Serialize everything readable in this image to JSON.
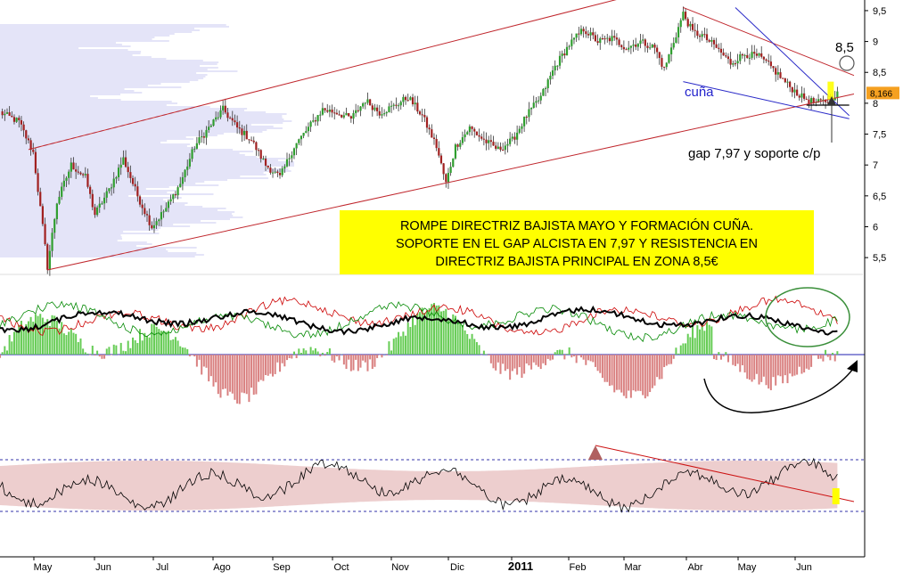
{
  "chart_data": [
    {
      "type": "candlestick",
      "title": "",
      "ylim": [
        5.3,
        9.6
      ],
      "y_ticks": [
        "9,5",
        "9",
        "8,5",
        "8",
        "7,5",
        "7",
        "6,5",
        "6",
        "5,5"
      ],
      "x_ticks": [
        "May",
        "Jun",
        "Jul",
        "Ago",
        "Sep",
        "Oct",
        "Nov",
        "Dic",
        "2011",
        "Feb",
        "Mar",
        "Abr",
        "May",
        "Jun"
      ],
      "price_path": [
        [
          0,
          7.85
        ],
        [
          8,
          7.7
        ],
        [
          14,
          7.2
        ],
        [
          18,
          6.0
        ],
        [
          20,
          5.35
        ],
        [
          24,
          6.4
        ],
        [
          30,
          7.0
        ],
        [
          36,
          6.8
        ],
        [
          40,
          6.2
        ],
        [
          46,
          6.6
        ],
        [
          52,
          7.1
        ],
        [
          58,
          6.5
        ],
        [
          64,
          6.0
        ],
        [
          70,
          6.3
        ],
        [
          76,
          6.7
        ],
        [
          82,
          7.3
        ],
        [
          88,
          7.6
        ],
        [
          94,
          7.9
        ],
        [
          100,
          7.6
        ],
        [
          106,
          7.4
        ],
        [
          112,
          7.0
        ],
        [
          118,
          6.8
        ],
        [
          124,
          7.3
        ],
        [
          130,
          7.6
        ],
        [
          136,
          7.9
        ],
        [
          142,
          7.85
        ],
        [
          148,
          7.75
        ],
        [
          154,
          8.05
        ],
        [
          160,
          7.85
        ],
        [
          166,
          7.95
        ],
        [
          172,
          8.1
        ],
        [
          178,
          7.8
        ],
        [
          184,
          7.3
        ],
        [
          188,
          6.7
        ],
        [
          192,
          7.3
        ],
        [
          198,
          7.6
        ],
        [
          204,
          7.4
        ],
        [
          210,
          7.25
        ],
        [
          216,
          7.4
        ],
        [
          222,
          7.8
        ],
        [
          228,
          8.1
        ],
        [
          234,
          8.6
        ],
        [
          240,
          8.95
        ],
        [
          246,
          9.2
        ],
        [
          252,
          9.0
        ],
        [
          258,
          9.05
        ],
        [
          264,
          8.9
        ],
        [
          270,
          9.0
        ],
        [
          276,
          8.9
        ],
        [
          280,
          8.55
        ],
        [
          284,
          9.0
        ],
        [
          288,
          9.45
        ],
        [
          292,
          9.15
        ],
        [
          296,
          9.1
        ],
        [
          302,
          8.9
        ],
        [
          308,
          8.65
        ],
        [
          314,
          8.8
        ],
        [
          320,
          8.75
        ],
        [
          326,
          8.55
        ],
        [
          332,
          8.3
        ],
        [
          338,
          8.1
        ],
        [
          344,
          8.0
        ],
        [
          350,
          8.05
        ],
        [
          352,
          8.15
        ]
      ],
      "trendlines": [
        {
          "name": "channel-top",
          "from": [
            12,
            7.25
          ],
          "to": [
            262,
            9.7
          ]
        },
        {
          "name": "channel-bottom",
          "from": [
            20,
            5.3
          ],
          "to": [
            360,
            8.15
          ]
        },
        {
          "name": "main-down-resistance",
          "from": [
            288,
            9.55
          ],
          "to": [
            360,
            8.45
          ]
        },
        {
          "name": "wedge-upper",
          "from": [
            310,
            9.55
          ],
          "to": [
            358,
            7.8
          ]
        },
        {
          "name": "wedge-lower",
          "from": [
            288,
            8.35
          ],
          "to": [
            358,
            7.75
          ]
        }
      ],
      "gap_support": 7.97,
      "last_price": "8,166",
      "annotations": {
        "target": "8,5",
        "wedge": "cuña",
        "gap": "gap 7,97 y soporte c/p",
        "box_lines": [
          "ROMPE DIRECTRIZ BAJISTA MAYO Y FORMACIÓN CUÑA.",
          "SOPORTE EN EL GAP ALCISTA EN 7,97 Y RESISTENCIA EN",
          "DIRECTRIZ BAJISTA PRINCIPAL EN ZONA 8,5€"
        ]
      }
    },
    {
      "type": "line+histogram",
      "series": [
        {
          "color": "#000000"
        },
        {
          "color": "#cc0000"
        },
        {
          "color": "#008800"
        }
      ]
    },
    {
      "type": "line+band",
      "series": [
        {
          "color": "#000000"
        }
      ]
    }
  ],
  "colors": {
    "bull": "#2f9e2f",
    "bear": "#a12020",
    "channel": "#c0272d",
    "wedge": "#2a2ac8",
    "highlight": "#ffff00",
    "price_tag": "#f5a020",
    "band": "#e9c2c2"
  }
}
